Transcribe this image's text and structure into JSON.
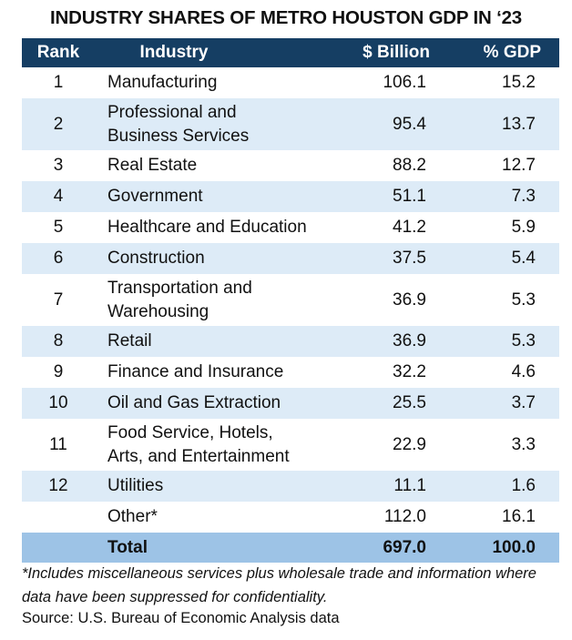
{
  "title": "INDUSTRY SHARES OF METRO HOUSTON GDP IN ‘23",
  "headers": [
    "Rank",
    "Industry",
    "$ Billion",
    "% GDP"
  ],
  "rows": [
    {
      "rank": "1",
      "industry": "Manufacturing",
      "billion": "106.1",
      "gdp": "15.2"
    },
    {
      "rank": "2",
      "industry": "Professional and Business Services",
      "billion": "95.4",
      "gdp": "13.7"
    },
    {
      "rank": "3",
      "industry": "Real Estate",
      "billion": "88.2",
      "gdp": "12.7"
    },
    {
      "rank": "4",
      "industry": "Government",
      "billion": "51.1",
      "gdp": "7.3"
    },
    {
      "rank": "5",
      "industry": "Healthcare and Education",
      "billion": "41.2",
      "gdp": "5.9"
    },
    {
      "rank": "6",
      "industry": "Construction",
      "billion": "37.5",
      "gdp": "5.4"
    },
    {
      "rank": "7",
      "industry": "Transportation and Warehousing",
      "billion": "36.9",
      "gdp": "5.3"
    },
    {
      "rank": "8",
      "industry": "Retail",
      "billion": "36.9",
      "gdp": "5.3"
    },
    {
      "rank": "9",
      "industry": "Finance and Insurance",
      "billion": "32.2",
      "gdp": "4.6"
    },
    {
      "rank": "10",
      "industry": "Oil and Gas Extraction",
      "billion": "25.5",
      "gdp": "3.7"
    },
    {
      "rank": "11",
      "industry": "Food Service, Hotels, Arts, and Entertainment",
      "billion": "22.9",
      "gdp": "3.3"
    },
    {
      "rank": "12",
      "industry": "Utilities",
      "billion": "11.1",
      "gdp": "1.6"
    },
    {
      "rank": "",
      "industry": "Other*",
      "billion": "112.0",
      "gdp": "16.1"
    }
  ],
  "total": {
    "label": "Total",
    "billion": "697.0",
    "gdp": "100.0"
  },
  "footnote": "*Includes miscellaneous services plus wholesale trade and information where data have been suppressed for confidentiality.",
  "source": "Source: U.S. Bureau of Economic Analysis data",
  "colors": {
    "header": "#153e63",
    "alt_row": "#ddebf7",
    "total_row": "#9dc3e6"
  }
}
